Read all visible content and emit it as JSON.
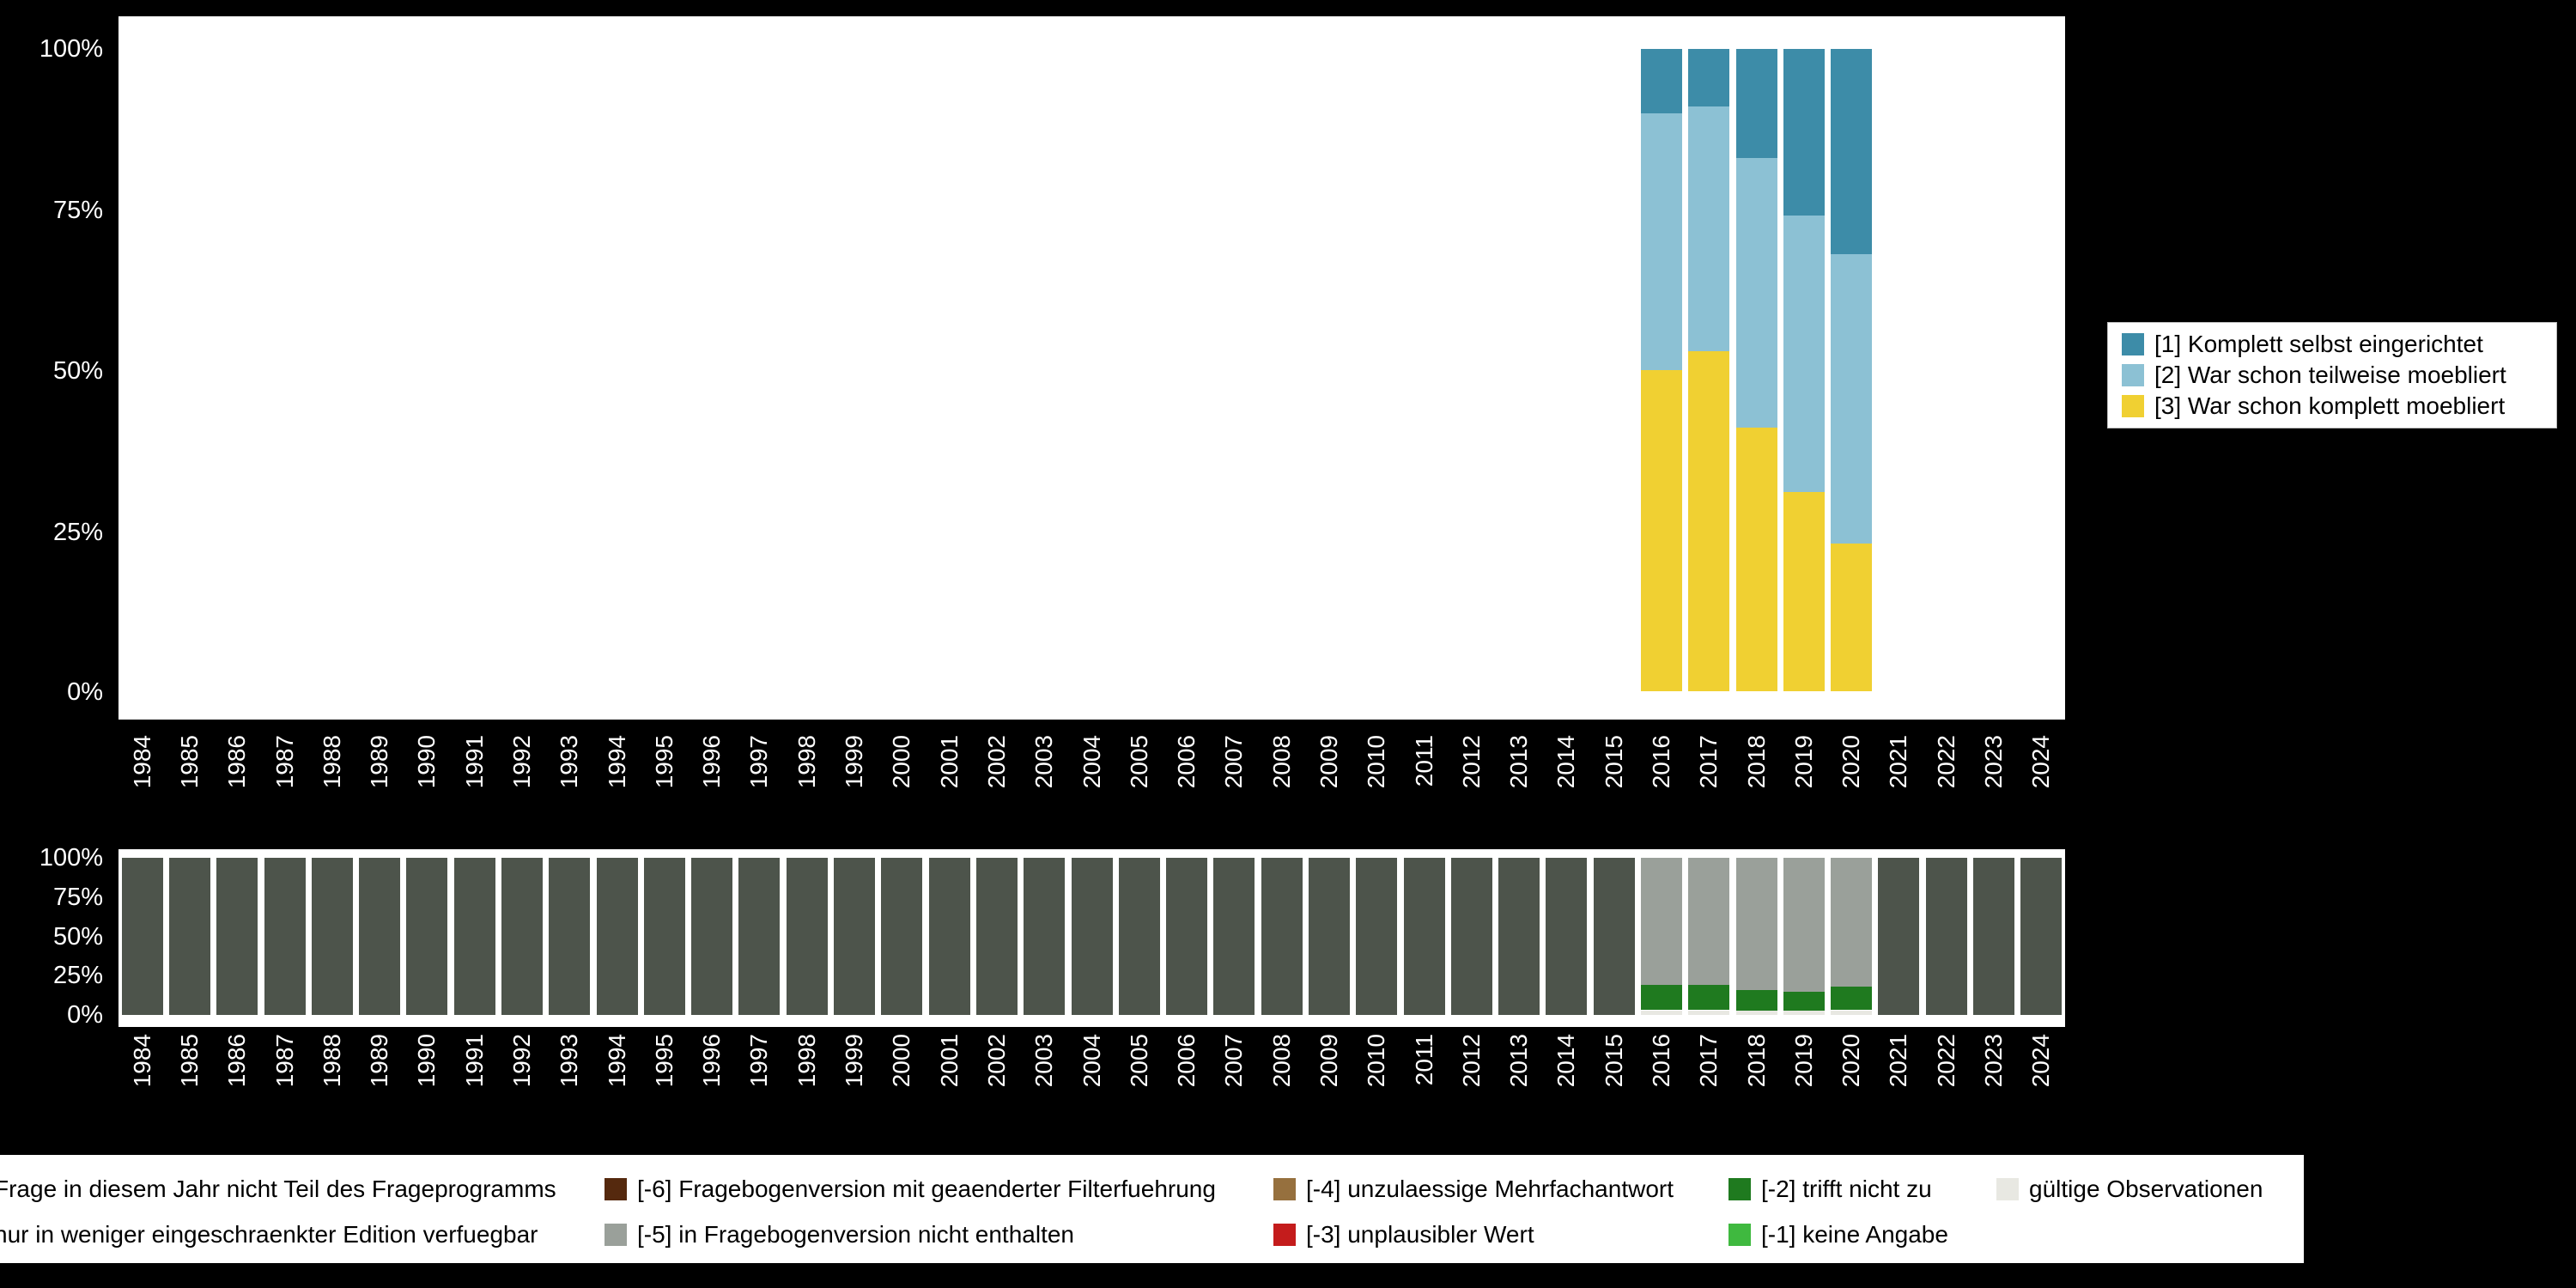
{
  "figure": {
    "background": "#000000",
    "axis_text_color": "#ffffff"
  },
  "chart_data": [
    {
      "id": "answers-distribution",
      "type": "bar",
      "stacked": true,
      "title": "",
      "xlabel": "",
      "ylabel": "",
      "ylim": [
        0,
        100
      ],
      "grid": false,
      "legend_position": "right",
      "y_ticks": [
        "100%",
        "75%",
        "50%",
        "25%",
        "0%"
      ],
      "categories": [
        "1984",
        "1985",
        "1986",
        "1987",
        "1988",
        "1989",
        "1990",
        "1991",
        "1992",
        "1993",
        "1994",
        "1995",
        "1996",
        "1997",
        "1998",
        "1999",
        "2000",
        "2001",
        "2002",
        "2003",
        "2004",
        "2005",
        "2006",
        "2007",
        "2008",
        "2009",
        "2010",
        "2011",
        "2012",
        "2013",
        "2014",
        "2015",
        "2016",
        "2017",
        "2018",
        "2019",
        "2020",
        "2021",
        "2022",
        "2023",
        "2024"
      ],
      "series": [
        {
          "name": "[3] War schon komplett moebliert",
          "color": "#f0d032",
          "values": [
            0,
            0,
            0,
            0,
            0,
            0,
            0,
            0,
            0,
            0,
            0,
            0,
            0,
            0,
            0,
            0,
            0,
            0,
            0,
            0,
            0,
            0,
            0,
            0,
            0,
            0,
            0,
            0,
            0,
            0,
            0,
            0,
            50,
            53,
            41,
            31,
            23,
            0,
            0,
            0,
            0
          ]
        },
        {
          "name": "[2] War schon teilweise moebliert",
          "color": "#8cc1d4",
          "values": [
            0,
            0,
            0,
            0,
            0,
            0,
            0,
            0,
            0,
            0,
            0,
            0,
            0,
            0,
            0,
            0,
            0,
            0,
            0,
            0,
            0,
            0,
            0,
            0,
            0,
            0,
            0,
            0,
            0,
            0,
            0,
            0,
            40,
            38,
            42,
            43,
            45,
            0,
            0,
            0,
            0
          ]
        },
        {
          "name": "[1] Komplett selbst eingerichtet",
          "color": "#3d8ca8",
          "values": [
            0,
            0,
            0,
            0,
            0,
            0,
            0,
            0,
            0,
            0,
            0,
            0,
            0,
            0,
            0,
            0,
            0,
            0,
            0,
            0,
            0,
            0,
            0,
            0,
            0,
            0,
            0,
            0,
            0,
            0,
            0,
            0,
            10,
            9,
            17,
            26,
            32,
            0,
            0,
            0,
            0
          ]
        }
      ]
    },
    {
      "id": "missings-distribution",
      "type": "bar",
      "stacked": true,
      "title": "",
      "xlabel": "",
      "ylabel": "",
      "ylim": [
        0,
        100
      ],
      "grid": false,
      "legend_position": "bottom",
      "y_ticks": [
        "100%",
        "75%",
        "50%",
        "25%",
        "0%"
      ],
      "categories": [
        "1984",
        "1985",
        "1986",
        "1987",
        "1988",
        "1989",
        "1990",
        "1991",
        "1992",
        "1993",
        "1994",
        "1995",
        "1996",
        "1997",
        "1998",
        "1999",
        "2000",
        "2001",
        "2002",
        "2003",
        "2004",
        "2005",
        "2006",
        "2007",
        "2008",
        "2009",
        "2010",
        "2011",
        "2012",
        "2013",
        "2014",
        "2015",
        "2016",
        "2017",
        "2018",
        "2019",
        "2020",
        "2021",
        "2022",
        "2023",
        "2024"
      ],
      "series": [
        {
          "name": "gültige Observationen",
          "color": "#e8e8e2",
          "values": [
            0,
            0,
            0,
            0,
            0,
            0,
            0,
            0,
            0,
            0,
            0,
            0,
            0,
            0,
            0,
            0,
            0,
            0,
            0,
            0,
            0,
            0,
            0,
            0,
            0,
            0,
            0,
            0,
            0,
            0,
            0,
            0,
            3,
            3,
            3,
            3,
            3,
            0,
            0,
            0,
            0
          ]
        },
        {
          "name": "[-2] trifft nicht zu",
          "color": "#1f7a1f",
          "values": [
            0,
            0,
            0,
            0,
            0,
            0,
            0,
            0,
            0,
            0,
            0,
            0,
            0,
            0,
            0,
            0,
            0,
            0,
            0,
            0,
            0,
            0,
            0,
            0,
            0,
            0,
            0,
            0,
            0,
            0,
            0,
            0,
            16,
            16,
            13,
            12,
            15,
            0,
            0,
            0,
            0
          ]
        },
        {
          "name": "[-5] in Fragebogenversion nicht enthalten",
          "color": "#9aa09a",
          "values": [
            0,
            0,
            0,
            0,
            0,
            0,
            0,
            0,
            0,
            0,
            0,
            0,
            0,
            0,
            0,
            0,
            0,
            0,
            0,
            0,
            0,
            0,
            0,
            0,
            0,
            0,
            0,
            0,
            0,
            0,
            0,
            0,
            81,
            81,
            84,
            85,
            82,
            0,
            0,
            0,
            0
          ]
        },
        {
          "name": "Frage in diesem Jahr nicht Teil des Frageprogramms",
          "color": "#4d544b",
          "values": [
            100,
            100,
            100,
            100,
            100,
            100,
            100,
            100,
            100,
            100,
            100,
            100,
            100,
            100,
            100,
            100,
            100,
            100,
            100,
            100,
            100,
            100,
            100,
            100,
            100,
            100,
            100,
            100,
            100,
            100,
            100,
            100,
            0,
            0,
            0,
            0,
            0,
            100,
            100,
            100,
            100
          ]
        }
      ]
    }
  ],
  "legend_top": {
    "items": [
      {
        "label": "[1] Komplett selbst eingerichtet",
        "color": "#3d8ca8"
      },
      {
        "label": "[2] War schon teilweise moebliert",
        "color": "#8cc1d4"
      },
      {
        "label": "[3] War schon komplett moebliert",
        "color": "#f0d032"
      }
    ]
  },
  "legend_bottom": {
    "rows": [
      [
        {
          "label": "Frage in diesem Jahr nicht Teil des Frageprogramms",
          "color": "#4d544b"
        },
        {
          "label": "[-6] Fragebogenversion mit geaenderter Filterfuehrung",
          "color": "#55290e"
        },
        {
          "label": "[-4] unzulaessige Mehrfachantwort",
          "color": "#96703e"
        },
        {
          "label": "[-2] trifft nicht zu",
          "color": "#1f7a1f"
        },
        {
          "label": "gültige Observationen",
          "color": "#e8e8e2"
        }
      ],
      [
        {
          "label": "nur in weniger eingeschraenkter Edition verfuegbar",
          "color": "#8f948f"
        },
        {
          "label": "[-5] in Fragebogenversion nicht enthalten",
          "color": "#9aa09a"
        },
        {
          "label": "[-3] unplausibler Wert",
          "color": "#c41c1c"
        },
        {
          "label": "[-1] keine Angabe",
          "color": "#3fb93f"
        }
      ]
    ]
  }
}
